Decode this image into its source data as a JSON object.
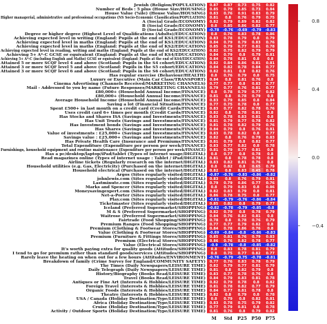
{
  "chart_data": {
    "type": "heatmap",
    "columns": [
      "M",
      "Std",
      "P25",
      "P50",
      "P75"
    ],
    "rows": [
      {
        "label": "Jewish (Religion/POPULATION)",
        "values": [
          0.87,
          0.87,
          0.73,
          0.75,
          0.82
        ]
      },
      {
        "label": "Number of Beds : 5 plus (House Size/HOUSING)",
        "values": [
          0.85,
          0.79,
          0.85,
          0.73,
          0.84
        ]
      },
      {
        "label": "House Value (%ile) (House Value/HOUSING)",
        "values": [
          0.83,
          0.76,
          0.91,
          0.83,
          0.79
        ]
      },
      {
        "label": "Higher managerial, administrative and professional occupations (NS Socio-Economic Classification/POPULATION)",
        "values": [
          0.81,
          0.8,
          0.76,
          0.79,
          0.75
        ]
      },
      {
        "label": "A (Social Grade/ECONOMY)",
        "values": [
          0.82,
          0.79,
          0.89,
          0.82,
          0.82
        ]
      },
      {
        "label": "B (Social Grade/ECONOMY)",
        "values": [
          0.8,
          0.85,
          0.86,
          0.82,
          0.77
        ]
      },
      {
        "label": "D (Social Grade/ECONOMY)",
        "values": [
          -0.78,
          -0.76,
          -0.69,
          -0.79,
          -0.83
        ]
      },
      {
        "label": "Degree or higher degree (Highest Level of Qualifications (Adults)/EDUCATION)",
        "values": [
          0.8,
          0.76,
          0.83,
          0.78,
          0.86
        ]
      },
      {
        "label": "Achieving expected level in writing (England: Pupils at the end of KS1/EDUCATION)",
        "values": [
          0.83,
          0.78,
          0.79,
          0.8,
          0.79
        ]
      },
      {
        "label": "Achieving expected level in maths (England: Pupils at the end of KS1/EDUCATION)",
        "values": [
          0.84,
          0.79,
          0.79,
          0.83,
          0.76
        ]
      },
      {
        "label": "Achieving expected level in maths (England: Pupils at the end of KS2/EDUCATION)",
        "values": [
          0.85,
          0.79,
          0.77,
          0.81,
          0.78
        ]
      },
      {
        "label": "Achieving expected level in reading, writing and maths (England: Pupils at the end of KS2/EDUCATION)",
        "values": [
          0.82,
          0.75,
          0.82,
          0.79,
          0.79
        ]
      },
      {
        "label": "Achieving 5+ A*-C GCSE or equivalent (England: Pupils at the end of KS4/EDUCATION)",
        "values": [
          0.84,
          0.79,
          0.8,
          0.79,
          0.81
        ]
      },
      {
        "label": "Achieving 5+ A*-C (including English and Maths) GCSE or equivalent (England: Pupils at the end of KS4/EDUCATION)",
        "values": [
          0.84,
          0.78,
          0.81,
          0.8,
          0.8
        ]
      },
      {
        "label": "Attained 5 or more SCQF level 4 and above (Scotland: Pupils in the S4 cohort/EDUCATION)",
        "values": [
          0.82,
          0.84,
          0.86,
          0.81,
          0.81
        ]
      },
      {
        "label": "Attained 3 or more SCQF level 5 and above (Scotland: Pupils in the S5 cohort/EDUCATION)",
        "values": [
          0.84,
          0.82,
          0.78,
          0.84,
          0.77
        ]
      },
      {
        "label": "Attained 3 or more SCQF level 6 and above (Scotland: Pupils in the S6 cohort/EDUCATION)",
        "values": [
          0.82,
          0.81,
          0.8,
          0.82,
          0.76
        ]
      },
      {
        "label": "Has regular exercise (Behaviour/HEALTH)",
        "values": [
          0.8,
          0.76,
          0.79,
          0.8,
          0.75
        ]
      },
      {
        "label": "Luxury or Executive (Main Car Class/TRANSPORT)",
        "values": [
          0.84,
          0.8,
          0.81,
          0.76,
          0.8
        ]
      },
      {
        "label": "Cinema Advertising (Channels Received/MARKETING CHANNELS)",
        "values": [
          0.77,
          0.77,
          0.8,
          0.83,
          0.77
        ]
      },
      {
        "label": "Mail - Addressed to you by name (Future Responses/MARKETING CHANNELS)",
        "values": [
          0.79,
          0.77,
          0.76,
          0.81,
          0.77
        ]
      },
      {
        "label": "£80,000+ (Household Annual Income/FINANCE)",
        "values": [
          0.8,
          0.78,
          0.79,
          0.77,
          0.82
        ]
      },
      {
        "label": "£80,000+ (Household Annual Income/FINANCE)",
        "values": [
          0.81,
          0.8,
          0.78,
          0.79,
          0.8
        ]
      },
      {
        "label": "Average Household Income (Household Annual Income/FINANCE)",
        "values": [
          0.83,
          0.79,
          0.85,
          0.8,
          0.84
        ]
      },
      {
        "label": "Saving a lot (Financial Situation/FINANCE)",
        "values": [
          0.77,
          0.75,
          0.78,
          0.8,
          0.77
        ]
      },
      {
        "label": "Spent £500+ in last month on a credit card (Credit Cards/FINANCE)",
        "values": [
          0.83,
          0.77,
          0.82,
          0.78,
          0.76
        ]
      },
      {
        "label": "Uses credit card 6+ times per month (Credit Cards/FINANCE)",
        "values": [
          0.82,
          0.8,
          0.78,
          0.81,
          0.8
        ]
      },
      {
        "label": "Has Stocks and Shares ISA (Savings and Investments/FINANCE)",
        "values": [
          0.83,
          0.78,
          0.83,
          0.81,
          0.8
        ]
      },
      {
        "label": "Has Unit Trusts (Savings and Investments/FINANCE)",
        "values": [
          0.81,
          0.79,
          0.77,
          0.78,
          0.82
        ]
      },
      {
        "label": "Has Investment bonds (Savings and Investments/FINANCE)",
        "values": [
          0.81,
          0.78,
          0.82,
          0.79,
          0.76
        ]
      },
      {
        "label": "Has Shares (Savings and Investments/FINANCE)",
        "values": [
          0.84,
          0.79,
          0.8,
          0.76,
          0.81
        ]
      },
      {
        "label": "Value of investments : £25,000+ (Savings and Investments/FINANCE)",
        "values": [
          0.83,
          0.78,
          0.82,
          0.8,
          0.77
        ]
      },
      {
        "label": "Savings value : £25,000+ (Savings and Investments/FINANCE)",
        "values": [
          0.82,
          0.8,
          0.76,
          0.79,
          0.83
        ]
      },
      {
        "label": "Has Private Health Care (Insurance and Premiums/FINANCE)",
        "values": [
          0.81,
          0.79,
          0.8,
          0.82,
          0.77
        ]
      },
      {
        "label": "Total Expenditure (Expenditure per person per week/FINANCE)",
        "values": [
          0.83,
          0.77,
          0.82,
          0.8,
          0.78
        ]
      },
      {
        "label": "Furnishings, household equipment and routine maintenance (Expenditure per person per week/FINANCE)",
        "values": [
          0.81,
          0.79,
          0.77,
          0.81,
          0.8
        ]
      },
      {
        "label": "Has a pc/desktop/laptop/iPad/tablet (Types of internet usage/DIGITAL)",
        "values": [
          0.8,
          0.77,
          0.8,
          0.78,
          0.8
        ]
      },
      {
        "label": "Read magazines online (Types of internet usage : Tablet / iPad/DIGITAL)",
        "values": [
          0.81,
          0.8,
          0.78,
          0.78,
          0.8
        ]
      },
      {
        "label": "Airline tickets (Regularly research on the internet/DIGITAL)",
        "values": [
          0.83,
          0.82,
          0.81,
          0.76,
          0.8
        ]
      },
      {
        "label": "Household utilities (e.g. Gas, Electricity) (Purchased on the internet/DIGITAL)",
        "values": [
          0.8,
          0.82,
          0.8,
          0.65,
          0.79
        ]
      },
      {
        "label": "Household electrical (Purchased on the internet/DIGITAL)",
        "values": [
          0.82,
          0.8,
          0.83,
          0.45,
          0.78
        ]
      },
      {
        "label": "Argos (Sites regularly visited/DIGITAL)",
        "values": [
          -0.87,
          -0.76,
          -0.83,
          -0.86,
          -0.82
        ]
      },
      {
        "label": "johnlewis.com (Sites regularly visited/DIGITAL)",
        "values": [
          0.83,
          0.8,
          0.76,
          0.79,
          0.81
        ]
      },
      {
        "label": "Lastminute.com (Sites regularly visited/DIGITAL)",
        "values": [
          0.79,
          0.79,
          0.86,
          0.77,
          0.76
        ]
      },
      {
        "label": "Marks and Spencer (Sites regularly visited/DIGITAL)",
        "values": [
          0.8,
          0.79,
          0.83,
          0.8,
          0.86
        ]
      },
      {
        "label": "Moneysavingexpert.com (Sites regularly visited/DIGITAL)",
        "values": [
          0.82,
          0.83,
          0.79,
          0.8,
          0.81
        ]
      },
      {
        "label": "Net-a-Porter (Sites regularly visited/DIGITAL)",
        "values": [
          0.86,
          0.78,
          0.75,
          0.8,
          0.77
        ]
      },
      {
        "label": "Play.com (Sites regularly visited/DIGITAL)",
        "values": [
          -0.81,
          -0.79,
          -0.76,
          -0.86,
          -0.84
        ]
      },
      {
        "label": "Ticketmaster (Sites regularly visited/DIGITAL)",
        "values": [
          0.85,
          0.82,
          0.8,
          0.79,
          0.77
        ]
      },
      {
        "label": "Iceland (Preferred Supermarket/SHOPPING)",
        "values": [
          -0.82,
          -0.78,
          -0.79,
          -0.85,
          -0.8
        ]
      },
      {
        "label": "M & S (Preferred Supermarket/SHOPPING)",
        "values": [
          0.82,
          0.79,
          0.8,
          0.78,
          0.79
        ]
      },
      {
        "label": "Waitrose (Preferred Supermarket/SHOPPING)",
        "values": [
          0.84,
          0.76,
          0.82,
          0.81,
          0.8
        ]
      },
      {
        "label": "Fairtrade (Food Shopping/SHOPPING)",
        "values": [
          0.78,
          0.8,
          0.78,
          0.76,
          0.79
        ]
      },
      {
        "label": "Premium Ranges (Food Shopping/SHOPPING)",
        "values": [
          0.77,
          0.77,
          0.79,
          0.82,
          0.8
        ]
      },
      {
        "label": "Premium (Clothing & Footwear Stores/SHOPPING)",
        "values": [
          0.84,
          0.78,
          0.86,
          0.76,
          0.8
        ]
      },
      {
        "label": "Value (Clothing & Footwear Stores/SHOPPING)",
        "values": [
          -0.89,
          -0.84,
          -0.8,
          -0.86,
          -0.83
        ]
      },
      {
        "label": "Premium (Furniture & Fittings Stores/SHOPPING)",
        "values": [
          0.85,
          0.81,
          0.76,
          0.79,
          0.83
        ]
      },
      {
        "label": "Premium (Electrical Stores/SHOPPING)",
        "values": [
          0.86,
          0.76,
          0.82,
          0.78,
          0.77
        ]
      },
      {
        "label": "Value (Electrical Stores/SHOPPING)",
        "values": [
          -0.9,
          -0.78,
          -0.8,
          -0.85,
          -0.82
        ]
      },
      {
        "label": "It's worth paying extra for quality goods (Attitudes/SHOPPING)",
        "values": [
          0.8,
          0.83,
          0.78,
          0.81,
          0.79
        ]
      },
      {
        "label": "I tend to go for premium rather than standard goods/services (Attitudes/SHOPPING)",
        "values": [
          0.8,
          0.75,
          0.77,
          0.82,
          0.77
        ]
      },
      {
        "label": "Rarely leave the heating on when out for a few hours (Attitudes/ENVIRONMENT)",
        "values": [
          -0.76,
          -0.79,
          -0.75,
          -0.78,
          -0.81
        ]
      },
      {
        "label": "Breakdown of family (Crime Survey for England/COMMUNITY SAFETY)",
        "values": [
          0.77,
          0.76,
          0.83,
          0.78,
          0.79
        ]
      },
      {
        "label": "The Times (Daily Newspapers/LEISURE TIME)",
        "values": [
          0.82,
          0.79,
          0.77,
          0.81,
          0.79
        ]
      },
      {
        "label": "Daily Telegraph (Daily Newspapers/LEISURE TIME)",
        "values": [
          0.81,
          0.8,
          0.82,
          0.79,
          0.8
        ]
      },
      {
        "label": "History/Biography (Books Read/LEISURE TIME)",
        "values": [
          0.83,
          0.77,
          0.78,
          0.76,
          0.8
        ]
      },
      {
        "label": "Travel (Books Read/LEISURE TIME)",
        "values": [
          0.84,
          0.79,
          0.83,
          0.81,
          0.78
        ]
      },
      {
        "label": "Antiques or Fine Art (Interests & Hobbies/LEISURE TIME)",
        "values": [
          0.82,
          0.79,
          0.78,
          0.8,
          0.82
        ]
      },
      {
        "label": "Foreign Travel (Interests & Hobbies/LEISURE TIME)",
        "values": [
          0.81,
          0.78,
          0.82,
          0.77,
          0.79
        ]
      },
      {
        "label": "Organic Foods (Interests & Hobbies/LEISURE TIME)",
        "values": [
          0.84,
          0.77,
          0.81,
          0.78,
          0.8
        ]
      },
      {
        "label": "Theatre (Interests & Hobbies/LEISURE TIME)",
        "values": [
          0.82,
          0.8,
          0.79,
          0.8,
          0.78
        ]
      },
      {
        "label": "USA / Canada (Holiday Destination/Type/LEISURE TIME)",
        "values": [
          0.8,
          0.79,
          0.8,
          0.82,
          0.81
        ]
      },
      {
        "label": "Africa (Holiday Destination/Type/LEISURE TIME)",
        "values": [
          0.83,
          0.78,
          0.75,
          0.79,
          0.82
        ]
      },
      {
        "label": "Cruise (Holiday Destination/Type/LEISURE TIME)",
        "values": [
          0.77,
          0.79,
          0.81,
          0.8,
          0.78
        ]
      },
      {
        "label": "Activity / Outdoor Sports (Holiday Destination/Type/LEISURE TIME)",
        "values": [
          0.81,
          0.76,
          0.8,
          0.79,
          0.82
        ]
      }
    ],
    "colorbar": {
      "min": -0.9,
      "max": 0.9,
      "ticks": [
        0.8,
        0.4,
        0.0,
        -0.4
      ],
      "tick_labels": [
        "0.8",
        "0.4",
        "0.0",
        "−0.4"
      ],
      "colors": {
        "negative": "#1f1fe0",
        "mid": "#f4f0f0",
        "positive": "#e8202a"
      }
    }
  }
}
